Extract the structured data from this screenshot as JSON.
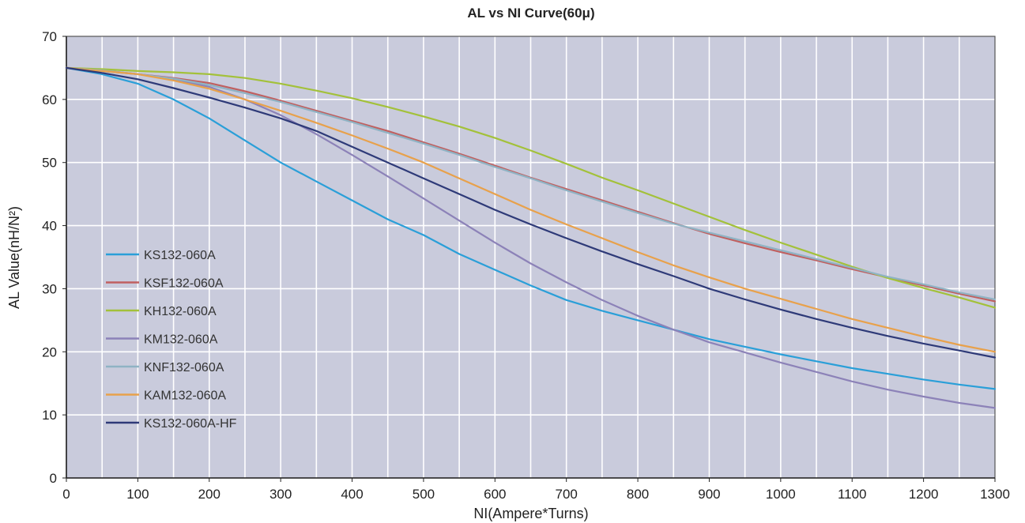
{
  "chart_data": {
    "type": "line",
    "title": "AL vs NI Curve(60μ)",
    "xlabel": "NI(Ampere*Turns)",
    "ylabel": "AL Value(nH/N²)",
    "xlim": [
      0,
      1300
    ],
    "ylim": [
      0,
      70
    ],
    "x_ticks": [
      0,
      100,
      200,
      300,
      400,
      500,
      600,
      700,
      800,
      900,
      1000,
      1100,
      1200,
      1300
    ],
    "y_ticks": [
      0,
      10,
      20,
      30,
      40,
      50,
      60,
      70
    ],
    "grid": true,
    "plot_background": "#c9cbdc",
    "grid_color": "#ffffff",
    "legend_position": "left-center",
    "series": [
      {
        "name": "KS132-060A",
        "color": "#2a9fd8",
        "x": [
          0,
          50,
          100,
          150,
          200,
          250,
          300,
          350,
          400,
          450,
          500,
          550,
          600,
          650,
          700,
          750,
          800,
          850,
          900,
          950,
          1000,
          1050,
          1100,
          1150,
          1200,
          1250,
          1300
        ],
        "y": [
          65,
          64,
          62.5,
          60,
          57,
          53.5,
          50,
          47,
          44,
          41,
          38.5,
          35.5,
          33,
          30.5,
          28.2,
          26.5,
          25,
          23.5,
          22,
          20.8,
          19.6,
          18.5,
          17.4,
          16.5,
          15.6,
          14.8,
          14.1
        ]
      },
      {
        "name": "KSF132-060A",
        "color": "#c06060",
        "x": [
          0,
          50,
          100,
          150,
          200,
          250,
          300,
          350,
          400,
          450,
          500,
          550,
          600,
          650,
          700,
          750,
          800,
          850,
          900,
          950,
          1000,
          1050,
          1100,
          1150,
          1200,
          1250,
          1300
        ],
        "y": [
          65,
          64.6,
          64,
          63.4,
          62.6,
          61.3,
          59.8,
          58.2,
          56.6,
          55,
          53.2,
          51.4,
          49.5,
          47.6,
          45.8,
          44,
          42.2,
          40.4,
          38.7,
          37.2,
          35.8,
          34.5,
          33.1,
          31.8,
          30.5,
          29.2,
          28
        ]
      },
      {
        "name": "KH132-060A",
        "color": "#a3c13a",
        "x": [
          0,
          50,
          100,
          150,
          200,
          250,
          300,
          350,
          400,
          450,
          500,
          550,
          600,
          650,
          700,
          750,
          800,
          850,
          900,
          950,
          1000,
          1050,
          1100,
          1150,
          1200,
          1250,
          1300
        ],
        "y": [
          65,
          64.8,
          64.5,
          64.3,
          64,
          63.4,
          62.5,
          61.4,
          60.2,
          58.8,
          57.3,
          55.7,
          53.9,
          51.9,
          49.8,
          47.6,
          45.6,
          43.5,
          41.4,
          39.3,
          37.3,
          35.4,
          33.5,
          31.7,
          30.1,
          28.6,
          27
        ]
      },
      {
        "name": "KM132-060A",
        "color": "#8c82b8",
        "x": [
          0,
          50,
          100,
          150,
          200,
          250,
          300,
          350,
          400,
          450,
          500,
          550,
          600,
          650,
          700,
          750,
          800,
          850,
          900,
          950,
          1000,
          1050,
          1100,
          1150,
          1200,
          1250,
          1300
        ],
        "y": [
          65,
          64.5,
          64,
          63.2,
          62,
          60,
          57.5,
          54.5,
          51.2,
          47.8,
          44.3,
          40.8,
          37.3,
          34,
          31,
          28.2,
          25.7,
          23.5,
          21.5,
          19.9,
          18.3,
          16.8,
          15.3,
          14,
          12.9,
          11.9,
          11.1
        ]
      },
      {
        "name": "KNF132-060A",
        "color": "#8fb3c4",
        "x": [
          0,
          50,
          100,
          150,
          200,
          250,
          300,
          350,
          400,
          450,
          500,
          550,
          600,
          650,
          700,
          750,
          800,
          850,
          900,
          950,
          1000,
          1050,
          1100,
          1150,
          1200,
          1250,
          1300
        ],
        "y": [
          65,
          64.6,
          64,
          63.3,
          62.3,
          61,
          59.6,
          58,
          56.4,
          54.7,
          53,
          51.2,
          49.3,
          47.5,
          45.6,
          43.8,
          42,
          40.3,
          38.9,
          37.5,
          36.1,
          34.7,
          33.3,
          31.9,
          30.7,
          29.4,
          28.3
        ]
      },
      {
        "name": "KAM132-060A",
        "color": "#e8a14b",
        "x": [
          0,
          50,
          100,
          150,
          200,
          250,
          300,
          350,
          400,
          450,
          500,
          550,
          600,
          650,
          700,
          750,
          800,
          850,
          900,
          950,
          1000,
          1050,
          1100,
          1150,
          1200,
          1250,
          1300
        ],
        "y": [
          65,
          64.5,
          64,
          63,
          61.7,
          60,
          58.2,
          56.3,
          54.3,
          52.2,
          50,
          47.5,
          45,
          42.5,
          40.2,
          38,
          35.8,
          33.7,
          31.8,
          30,
          28.4,
          26.8,
          25.2,
          23.8,
          22.4,
          21.1,
          20
        ]
      },
      {
        "name": "KS132-060A-HF",
        "color": "#2e3a78",
        "x": [
          0,
          50,
          100,
          150,
          200,
          250,
          300,
          350,
          400,
          450,
          500,
          550,
          600,
          650,
          700,
          750,
          800,
          850,
          900,
          950,
          1000,
          1050,
          1100,
          1150,
          1200,
          1250,
          1300
        ],
        "y": [
          65,
          64.2,
          63.2,
          61.8,
          60.3,
          58.7,
          57,
          55,
          52.5,
          50,
          47.5,
          45,
          42.5,
          40.2,
          38,
          35.9,
          33.9,
          32,
          30,
          28.3,
          26.7,
          25.2,
          23.8,
          22.5,
          21.3,
          20.2,
          19.1
        ]
      }
    ]
  }
}
